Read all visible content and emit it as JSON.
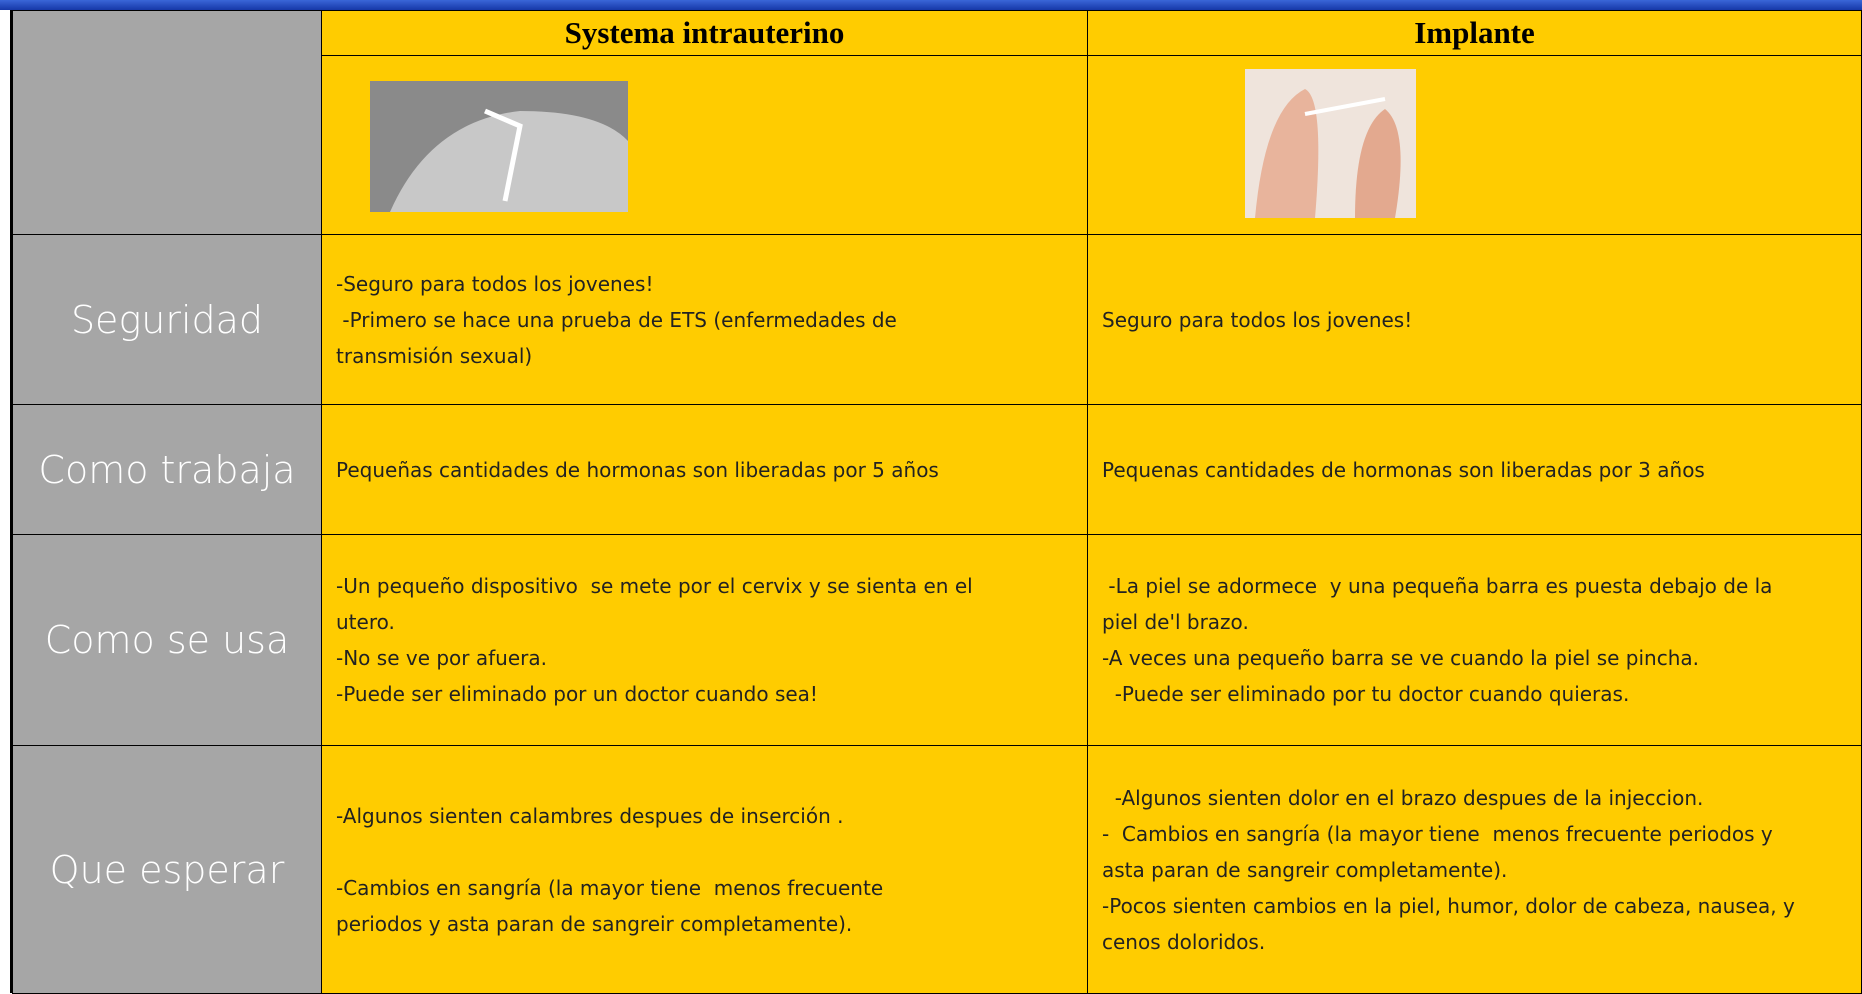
{
  "header": {
    "columns": [
      "Systema intrauterino",
      "Implante"
    ]
  },
  "rows": [
    {
      "label": "Seguridad",
      "cells": [
        [
          [
            "-Seguro para todos los jovenes!",
            " -Primero se hace una prueba de ETS (enfermedades de",
            "transmisión sexual)"
          ]
        ],
        [
          [
            "Seguro para todos los jovenes!"
          ]
        ]
      ]
    },
    {
      "label": "Como trabaja",
      "cells": [
        [
          [
            "Pequeñas cantidades de hormonas son liberadas por 5 años"
          ]
        ],
        [
          [
            "Pequenas cantidades de hormonas son liberadas por 3 años"
          ]
        ]
      ]
    },
    {
      "label": "Como se usa",
      "cells": [
        [
          [
            "-Un pequeño dispositivo  se mete por el cervix y se sienta en el",
            "utero.",
            "-No se ve por afuera.",
            "-Puede ser eliminado por un doctor cuando sea!"
          ]
        ],
        [
          [
            " -La piel se adormece  y una pequeña barra es puesta debajo de la",
            "piel de'l brazo.",
            "-A veces una pequeño barra se ve cuando la piel se pincha.",
            "  -Puede ser eliminado por tu doctor cuando quieras."
          ]
        ]
      ]
    },
    {
      "label": "Que esperar",
      "cells": [
        [
          [
            "-Algunos sienten calambres despues de inserción ."
          ],
          [
            "-Cambios en sangría (la mayor tiene  menos frecuente",
            "periodos y asta paran de sangreir completamente)."
          ]
        ],
        [
          [
            "  -Algunos sienten dolor en el brazo despues de la injeccion.",
            "-  Cambios en sangría (la mayor tiene  menos frecuente periodos y",
            "asta paran de sangreir completamente).",
            "-Pocos sienten cambios en la piel, humor, dolor de cabeza, nausea, y",
            "cenos doloridos."
          ]
        ]
      ]
    }
  ]
}
